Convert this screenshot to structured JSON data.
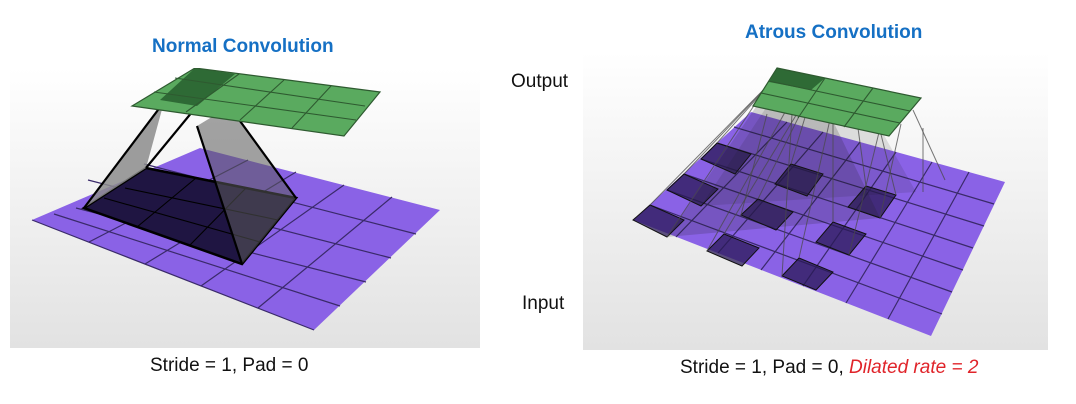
{
  "left": {
    "title": "Normal Convolution",
    "caption": "Stride = 1, Pad = 0"
  },
  "right": {
    "title": "Atrous Convolution",
    "caption_main": "Stride = 1, Pad = 0, ",
    "caption_highlight": "Dilated rate = 2"
  },
  "labels": {
    "output": "Output",
    "input": "Input"
  },
  "colors": {
    "title": "#1570c4",
    "input_grid": "#8a62e6",
    "output_grid": "#5aaa5f",
    "highlight_text": "#e0242a"
  }
}
